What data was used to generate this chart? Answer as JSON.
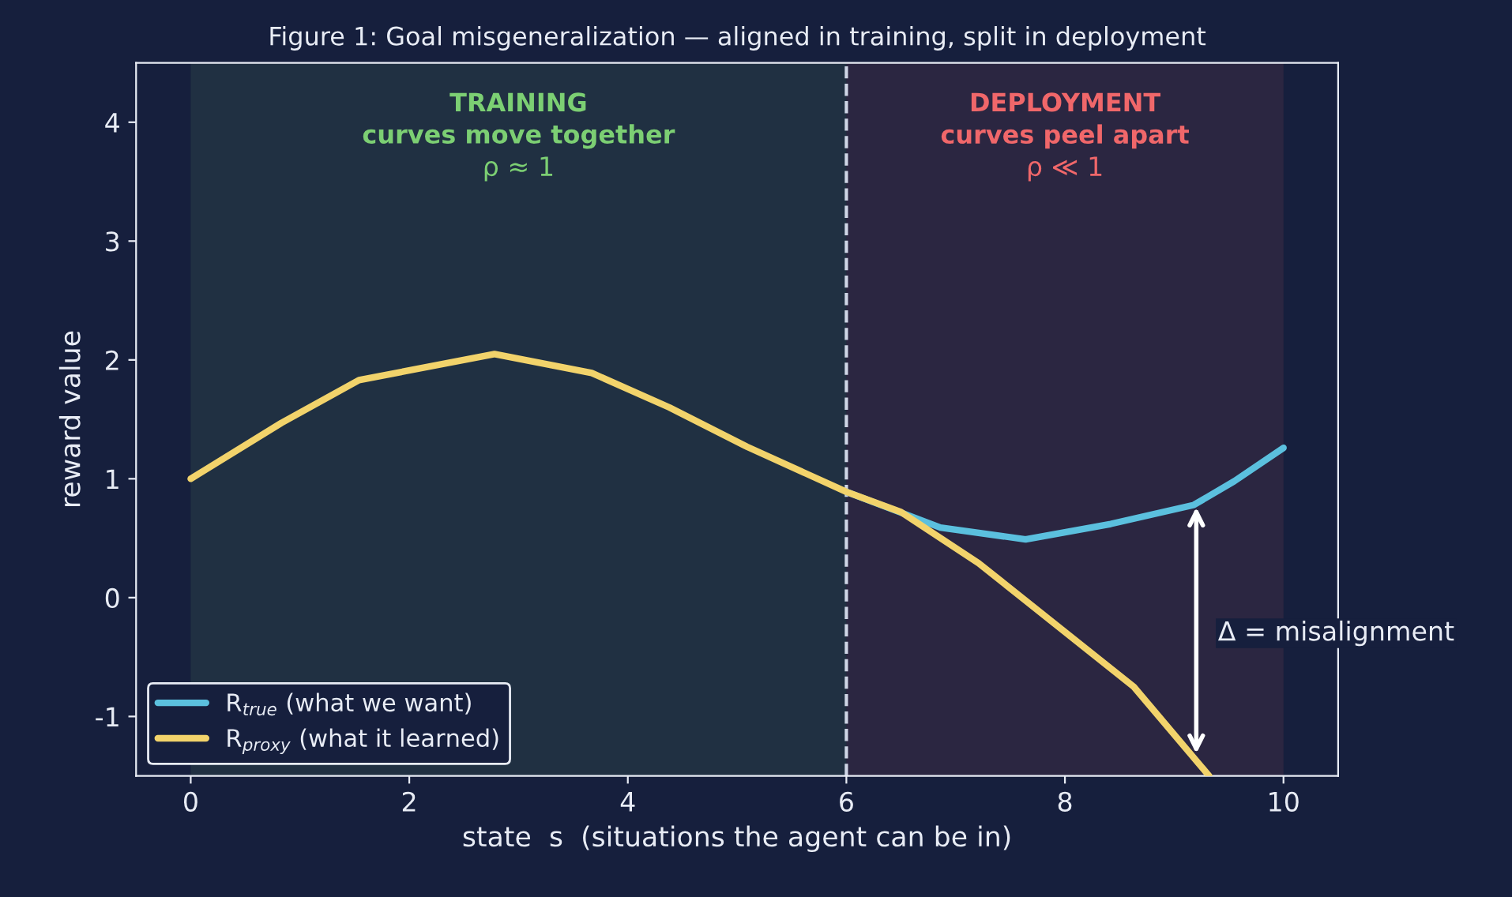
{
  "chart_data": {
    "type": "line",
    "title": "Figure 1: Goal misgeneralization — aligned in training, split in deployment",
    "xlabel": "state  s  (situations the agent can be in)",
    "ylabel": "reward value",
    "series": [
      {
        "name": "R$_{true}$ (what we want)",
        "color": "#5bc0de",
        "x": [
          6.0,
          6.86,
          7.64,
          8.42,
          9.18,
          9.55,
          10
        ],
        "values": [
          0.89,
          0.59,
          0.49,
          0.62,
          0.78,
          0.98,
          1.26
        ]
      },
      {
        "name": "R$_{proxy}$ (what it learned)",
        "color": "#f2d36b",
        "x": [
          0,
          0.83,
          1.54,
          2.78,
          3.67,
          4.38,
          5.09,
          6.0,
          6.5,
          7.21,
          7.92,
          8.63,
          9.32
        ],
        "values": [
          1.0,
          1.47,
          1.83,
          2.05,
          1.89,
          1.6,
          1.27,
          0.89,
          0.72,
          0.29,
          -0.23,
          -0.75,
          -1.5
        ]
      }
    ],
    "xlim": [
      -0.5,
      10.5
    ],
    "ylim": [
      -1.5,
      4.5
    ],
    "xticks": [
      0,
      2,
      4,
      6,
      8,
      10
    ],
    "yticks": [
      -1,
      0,
      1,
      2,
      3,
      4
    ],
    "bands": [
      {
        "axis": "x",
        "from": 0,
        "to": 6,
        "label": "TRAINING\ncurves move together\nρ ≈ 1",
        "color": "#7ccf73"
      },
      {
        "axis": "x",
        "from": 6,
        "to": 10,
        "label": "DEPLOYMENT\ncurves peel apart\nρ ≪ 1",
        "color": "#f0676a"
      }
    ],
    "ref_lines": [
      {
        "axis": "x",
        "value": 6,
        "color": "#cfd6e6",
        "line_style": "dashed"
      }
    ],
    "annotations": [
      "Δ = misalignment"
    ],
    "grid": false,
    "legend": "bottom left",
    "marker": "none",
    "line_style": "solid"
  }
}
